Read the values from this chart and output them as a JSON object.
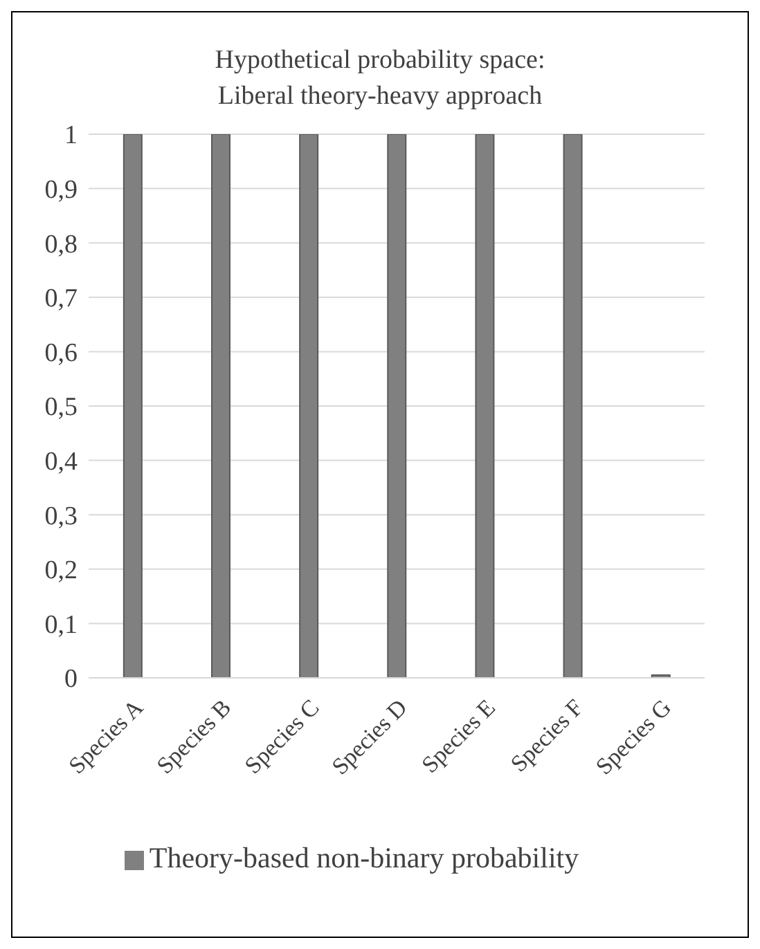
{
  "chart_data": {
    "type": "bar",
    "title": "Hypothetical probability space:\nLiberal theory-heavy approach",
    "categories": [
      "Species A",
      "Species B",
      "Species C",
      "Species D",
      "Species E",
      "Species F",
      "Species G"
    ],
    "series": [
      {
        "name": "Theory-based non-binary probability",
        "color": "#808080",
        "values": [
          1,
          1,
          1,
          1,
          1,
          1,
          0
        ]
      }
    ],
    "ylim": [
      0,
      1
    ],
    "yticks": [
      0,
      {
        "value": 0.1,
        "label": "0,1"
      },
      {
        "value": 0.2,
        "label": "0,2"
      },
      {
        "value": 0.3,
        "label": "0,3"
      },
      {
        "value": 0.4,
        "label": "0,4"
      },
      {
        "value": 0.5,
        "label": "0,5"
      },
      {
        "value": 0.6,
        "label": "0,6"
      },
      {
        "value": 0.7,
        "label": "0,7"
      },
      {
        "value": 0.8,
        "label": "0,8"
      },
      {
        "value": 0.9,
        "label": "0,9"
      },
      1
    ],
    "grid": "y",
    "legend": "bottom"
  }
}
